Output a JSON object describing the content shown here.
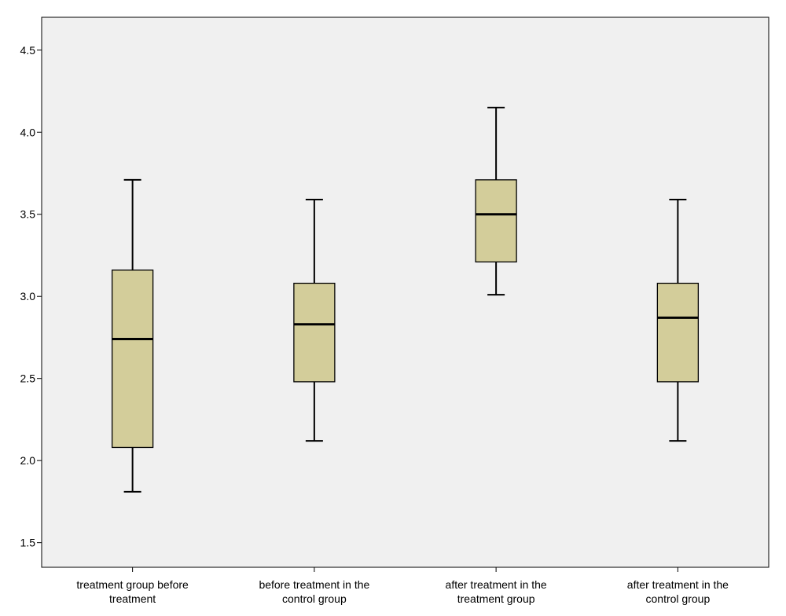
{
  "chart_data": {
    "type": "boxplot",
    "title": "",
    "xlabel": "",
    "ylabel": "",
    "ylim": [
      1.35,
      4.7
    ],
    "yticks": [
      "1.5",
      "2.0",
      "2.5",
      "3.0",
      "3.5",
      "4.0",
      "4.5"
    ],
    "grid": false,
    "legend": "none",
    "categories": [
      [
        "treatment group before",
        "treatment"
      ],
      [
        "before treatment in the",
        "control group"
      ],
      [
        "after treatment in the",
        "treatment group"
      ],
      [
        "after treatment in the",
        "control group"
      ]
    ],
    "boxes": [
      {
        "min": 1.81,
        "q1": 2.08,
        "median": 2.74,
        "q3": 3.16,
        "max": 3.71
      },
      {
        "min": 2.12,
        "q1": 2.48,
        "median": 2.83,
        "q3": 3.08,
        "max": 3.59
      },
      {
        "min": 3.01,
        "q1": 3.21,
        "median": 3.5,
        "q3": 3.71,
        "max": 4.15
      },
      {
        "min": 2.12,
        "q1": 2.48,
        "median": 2.87,
        "q3": 3.08,
        "max": 3.59
      }
    ],
    "colors": {
      "box_fill": "#d3cd9a",
      "plot_background": "#f0f0f0",
      "line": "#000000"
    }
  }
}
